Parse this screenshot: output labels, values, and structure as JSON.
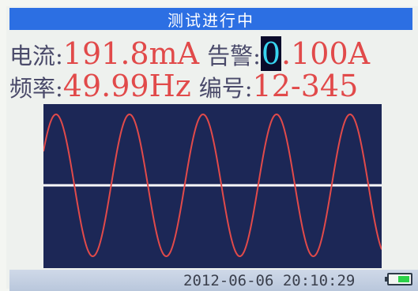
{
  "title_bar": {
    "text": "测试进行中"
  },
  "readouts": {
    "current": {
      "label": "电流",
      "colon": ":",
      "value": "191.8mA"
    },
    "alarm": {
      "label": "告警",
      "colon": ":",
      "value_cursor_digit": "0",
      "value_rest": ".100A"
    },
    "frequency": {
      "label": "频率",
      "colon": ":",
      "value": "49.99Hz"
    },
    "serial": {
      "label": "编号",
      "colon": ":",
      "value": "12-345"
    }
  },
  "waveform": {
    "type": "line",
    "wave_color": "#e14a4a",
    "baseline_color": "#ffffff",
    "background": "#1c2756",
    "visible_cycles": 4.6
  },
  "status_bar": {
    "datetime": "2012-06-06 20:10:29",
    "battery_icon": "battery-icon",
    "battery_level": 0.55,
    "battery_color": "#2dd24a"
  }
}
